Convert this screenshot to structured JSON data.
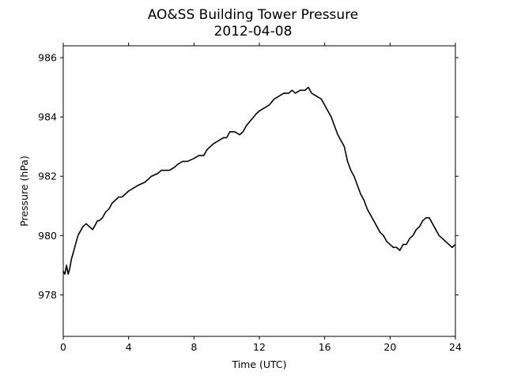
{
  "chart_data": {
    "type": "line",
    "title": "AO&SS Building Tower Pressure",
    "subtitle": "2012-04-08",
    "xlabel": "Time (UTC)",
    "ylabel": "Pressure (hPa)",
    "xlim": [
      0,
      24
    ],
    "ylim": [
      976.6,
      986.4
    ],
    "xticks": [
      0,
      4,
      8,
      12,
      16,
      20,
      24
    ],
    "yticks": [
      978,
      980,
      982,
      984,
      986
    ],
    "grid": false,
    "line_color": "#000000",
    "series": [
      {
        "x": [
          0.0,
          0.1,
          0.2,
          0.3,
          0.4,
          0.5,
          0.6,
          0.7,
          0.8,
          0.9,
          1.0,
          1.2,
          1.4,
          1.6,
          1.8,
          1.9,
          2.0,
          2.1,
          2.2,
          2.4,
          2.6,
          2.8,
          3.0,
          3.2,
          3.4,
          3.6,
          3.8,
          4.0,
          4.3,
          4.6,
          5.0,
          5.4,
          5.8,
          6.0,
          6.2,
          6.5,
          6.8,
          7.0,
          7.3,
          7.6,
          8.0,
          8.3,
          8.6,
          8.8,
          9.0,
          9.2,
          9.5,
          9.8,
          10.0,
          10.2,
          10.5,
          10.8,
          11.0,
          11.2,
          11.5,
          11.8,
          12.0,
          12.3,
          12.6,
          12.9,
          13.2,
          13.5,
          13.8,
          14.0,
          14.2,
          14.5,
          14.8,
          15.0,
          15.2,
          15.5,
          15.8,
          16.0,
          16.2,
          16.4,
          16.6,
          16.8,
          17.0,
          17.2,
          17.4,
          17.6,
          17.8,
          18.0,
          18.2,
          18.4,
          18.6,
          18.8,
          19.0,
          19.2,
          19.4,
          19.6,
          19.8,
          20.0,
          20.2,
          20.4,
          20.6,
          20.8,
          21.0,
          21.2,
          21.4,
          21.6,
          21.8,
          22.0,
          22.2,
          22.4,
          22.6,
          22.8,
          23.0,
          23.2,
          23.4,
          23.6,
          23.8,
          24.0
        ],
        "values": [
          978.8,
          978.7,
          979.0,
          978.7,
          978.9,
          979.2,
          979.4,
          979.6,
          979.8,
          980.0,
          980.1,
          980.3,
          980.4,
          980.3,
          980.2,
          980.3,
          980.4,
          980.5,
          980.5,
          980.6,
          980.8,
          980.9,
          981.1,
          981.2,
          981.3,
          981.3,
          981.4,
          981.5,
          981.6,
          981.7,
          981.8,
          982.0,
          982.1,
          982.2,
          982.2,
          982.2,
          982.3,
          982.4,
          982.5,
          982.5,
          982.6,
          982.7,
          982.7,
          982.9,
          983.0,
          983.1,
          983.2,
          983.3,
          983.3,
          983.5,
          983.5,
          983.4,
          983.5,
          983.7,
          983.9,
          984.1,
          984.2,
          984.3,
          984.4,
          984.6,
          984.7,
          984.8,
          984.8,
          984.9,
          984.8,
          984.9,
          984.9,
          985.0,
          984.8,
          984.7,
          984.6,
          984.4,
          984.2,
          984.0,
          983.7,
          983.4,
          983.2,
          983.0,
          982.5,
          982.2,
          982.0,
          981.7,
          981.4,
          981.2,
          980.9,
          980.7,
          980.5,
          980.3,
          980.1,
          980.0,
          979.8,
          979.7,
          979.6,
          979.6,
          979.5,
          979.7,
          979.7,
          979.9,
          980.0,
          980.2,
          980.3,
          980.5,
          980.6,
          980.6,
          980.4,
          980.2,
          980.0,
          979.9,
          979.8,
          979.7,
          979.6,
          979.7
        ]
      }
    ]
  }
}
